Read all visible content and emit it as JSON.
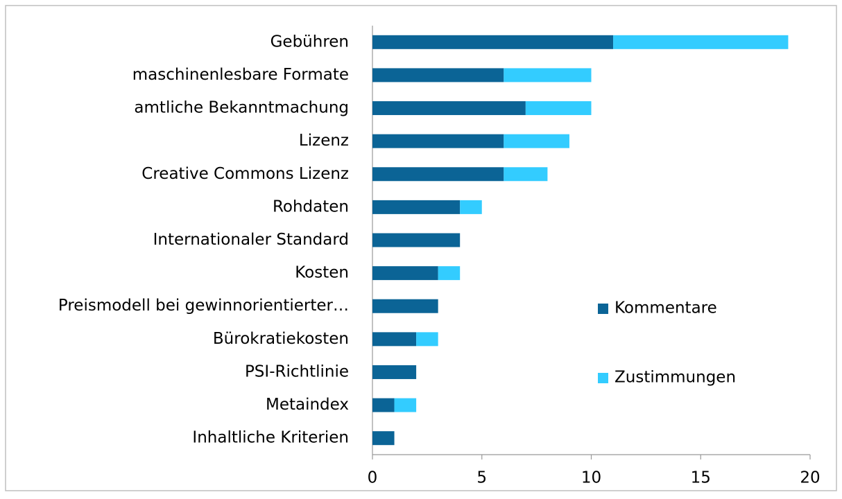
{
  "chart_data": {
    "type": "stacked_barh",
    "categories": [
      "Gebühren",
      "maschinenlesbare Formate",
      "amtliche Bekanntmachung",
      "Lizenz",
      "Creative Commons Lizenz",
      "Rohdaten",
      "Internationaler Standard",
      "Kosten",
      "Preismodell bei gewinnorientierter…",
      "Bürokratiekosten",
      "PSI-Richtlinie",
      "Metaindex",
      "Inhaltliche Kriterien"
    ],
    "series": [
      {
        "name": "Kommentare",
        "color": "#0b6496",
        "values": [
          11,
          6,
          7,
          6,
          6,
          4,
          4,
          3,
          3,
          2,
          2,
          1,
          1
        ]
      },
      {
        "name": "Zustimmungen",
        "color": "#33ccff",
        "values": [
          8,
          4,
          3,
          3,
          2,
          1,
          0,
          1,
          0,
          1,
          0,
          1,
          0
        ]
      }
    ],
    "xlim": [
      0,
      20
    ],
    "xticks": [
      0,
      5,
      10,
      15,
      20
    ],
    "grid": false,
    "legend": "right"
  }
}
